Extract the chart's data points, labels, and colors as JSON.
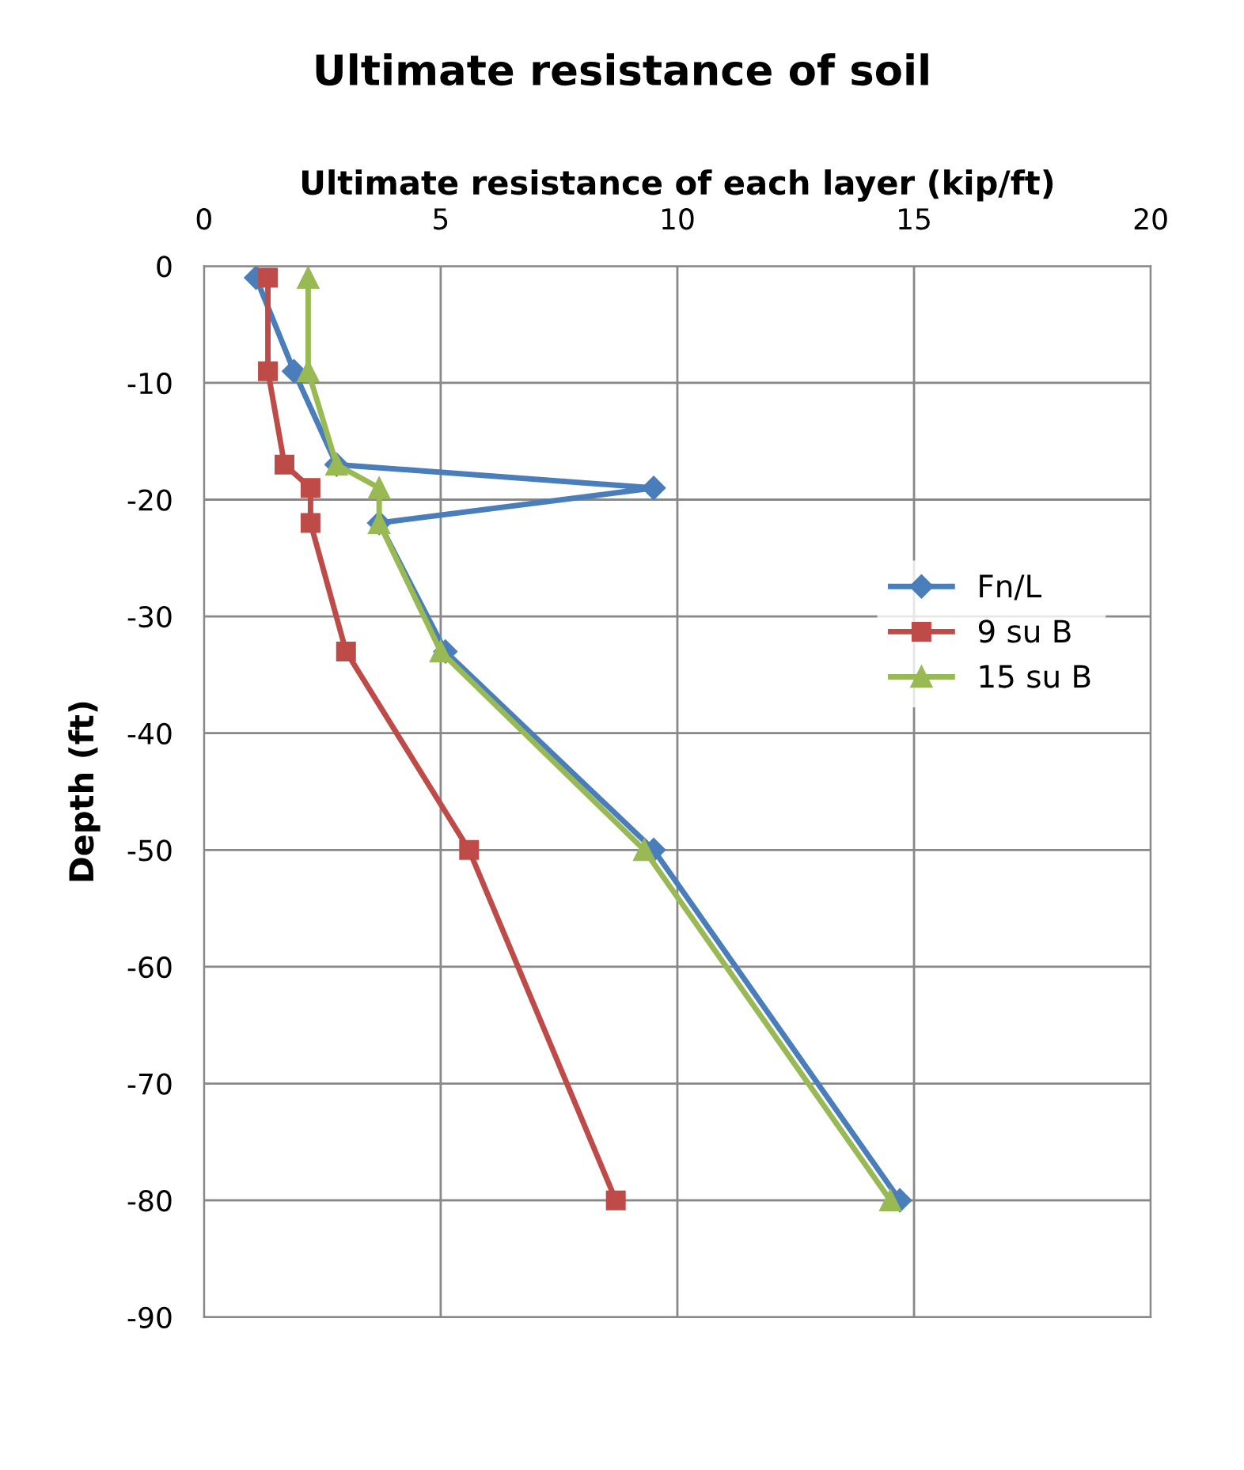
{
  "chart_data": {
    "type": "line",
    "title": "Ultimate resistance of soil",
    "xlabel": "Ultimate resistance of each layer (kip/ft)",
    "ylabel": "Depth (ft)",
    "xlim": [
      0,
      20
    ],
    "xticks": [
      0,
      5,
      10,
      15,
      20
    ],
    "ylim": [
      -90,
      0
    ],
    "yticks": [
      0,
      -10,
      -20,
      -30,
      -40,
      -50,
      -60,
      -70,
      -80,
      -90
    ],
    "grid": true,
    "legend": "right",
    "line_style": "solid",
    "series": [
      {
        "name": "Fn/L",
        "color": "#4a7ebb",
        "marker": "diamond",
        "x": [
          1.1,
          1.9,
          2.8,
          9.5,
          3.7,
          5.1,
          9.5,
          14.7
        ],
        "values": [
          -1,
          -9,
          -17,
          -19,
          -22,
          -33,
          -50,
          -80
        ]
      },
      {
        "name": "9 su B",
        "color": "#be4b48",
        "marker": "square",
        "x": [
          1.35,
          1.35,
          1.7,
          2.25,
          2.25,
          3.0,
          5.6,
          8.7
        ],
        "values": [
          -1,
          -9,
          -17,
          -19,
          -22,
          -33,
          -50,
          -80
        ]
      },
      {
        "name": "15 su B",
        "color": "#98b954",
        "marker": "triangle",
        "x": [
          2.2,
          2.2,
          2.8,
          3.7,
          3.7,
          5.0,
          9.3,
          14.5
        ],
        "values": [
          -1,
          -9,
          -17,
          -19,
          -22,
          -33,
          -50,
          -80
        ]
      }
    ]
  }
}
